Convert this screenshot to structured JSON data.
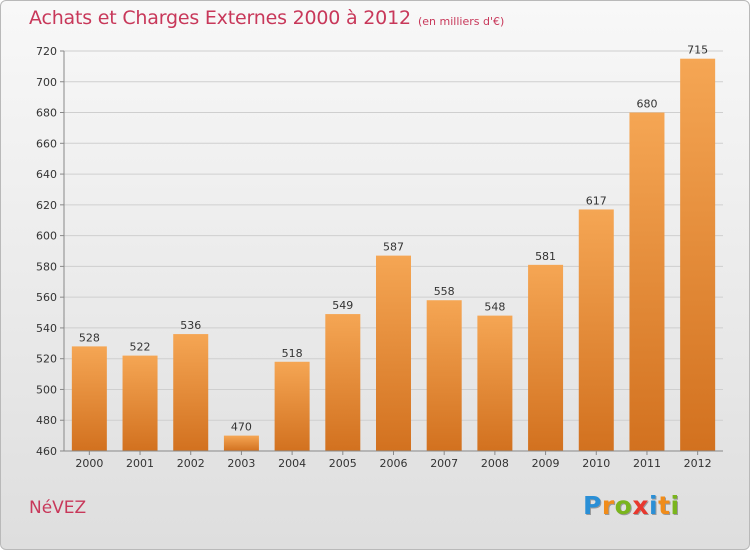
{
  "header": {
    "title": "Achats et Charges Externes 2000 à 2012",
    "unit_note": "(en milliers d'€)"
  },
  "footer": {
    "commune": "NéVEZ",
    "logo_text": "Proxiti",
    "logo_letters": [
      {
        "char": "P",
        "color": "#2a8fd6"
      },
      {
        "char": "r",
        "color": "#f08c1a"
      },
      {
        "char": "o",
        "color": "#7ab51d"
      },
      {
        "char": "x",
        "color": "#e8382e"
      },
      {
        "char": "i",
        "color": "#2a8fd6"
      },
      {
        "char": "t",
        "color": "#f08c1a"
      },
      {
        "char": "i",
        "color": "#7ab51d"
      }
    ]
  },
  "chart_data": {
    "type": "bar",
    "title": "Achats et Charges Externes 2000 à 2012",
    "subtitle": "(en milliers d'€)",
    "categories": [
      "2000",
      "2001",
      "2002",
      "2003",
      "2004",
      "2005",
      "2006",
      "2007",
      "2008",
      "2009",
      "2010",
      "2011",
      "2012"
    ],
    "values": [
      528,
      522,
      536,
      470,
      518,
      549,
      587,
      558,
      548,
      581,
      617,
      680,
      715
    ],
    "ylim": [
      460,
      720
    ],
    "yticks": [
      460,
      480,
      500,
      520,
      540,
      560,
      580,
      600,
      620,
      640,
      660,
      680,
      700,
      720
    ],
    "grid": true,
    "bar_color_top": "#f5a654",
    "bar_color_bottom": "#d2711f",
    "legend": "none"
  }
}
